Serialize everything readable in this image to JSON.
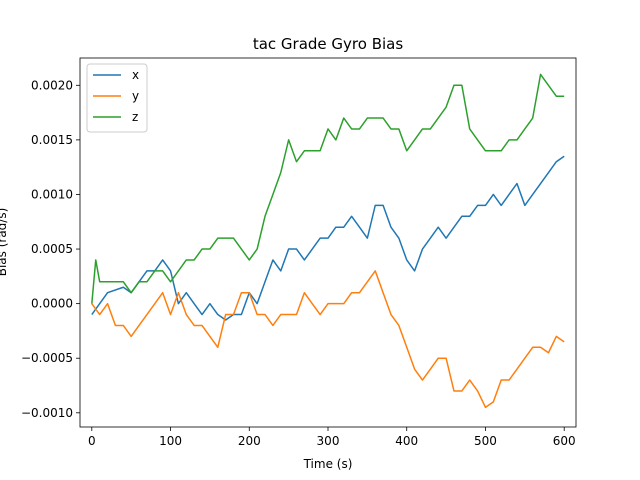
{
  "chart_data": {
    "type": "line",
    "title": "tac Grade Gyro Bias",
    "xlabel": "Time (s)",
    "ylabel": "Bias (rad/s)",
    "xlim": [
      -15,
      615
    ],
    "ylim": [
      -0.00113,
      0.00225
    ],
    "xticks": [
      0,
      100,
      200,
      300,
      400,
      500,
      600
    ],
    "yticks": [
      -0.001,
      -0.0005,
      0.0,
      0.0005,
      0.001,
      0.0015,
      0.002
    ],
    "ytick_labels": [
      "−0.0010",
      "−0.0005",
      "0.0000",
      "0.0005",
      "0.0010",
      "0.0015",
      "0.0020"
    ],
    "grid": false,
    "legend_position": "top-left",
    "colors": {
      "x": "#1f77b4",
      "y": "#ff7f0e",
      "z": "#2ca02c"
    },
    "series": [
      {
        "name": "x",
        "x": [
          0,
          20,
          40,
          50,
          60,
          70,
          80,
          90,
          100,
          110,
          120,
          130,
          140,
          150,
          160,
          170,
          180,
          190,
          200,
          210,
          220,
          230,
          240,
          250,
          260,
          270,
          280,
          290,
          300,
          310,
          320,
          330,
          340,
          350,
          360,
          370,
          380,
          390,
          400,
          410,
          420,
          430,
          440,
          450,
          460,
          470,
          480,
          490,
          500,
          510,
          520,
          530,
          540,
          550,
          560,
          570,
          580,
          590,
          600
        ],
        "y": [
          -0.0001,
          0.0001,
          0.00015,
          0.0001,
          0.0002,
          0.0003,
          0.0003,
          0.0004,
          0.0003,
          0.0,
          0.0001,
          0.0,
          -0.0001,
          0.0,
          -0.0001,
          -0.00015,
          -0.0001,
          -0.0001,
          0.0001,
          0.0,
          0.0002,
          0.0004,
          0.0003,
          0.0005,
          0.0005,
          0.0004,
          0.0005,
          0.0006,
          0.0006,
          0.0007,
          0.0007,
          0.0008,
          0.0007,
          0.0006,
          0.0009,
          0.0009,
          0.0007,
          0.0006,
          0.0004,
          0.0003,
          0.0005,
          0.0006,
          0.0007,
          0.0006,
          0.0007,
          0.0008,
          0.0008,
          0.0009,
          0.0009,
          0.001,
          0.0009,
          0.001,
          0.0011,
          0.0009,
          0.001,
          0.0011,
          0.0012,
          0.0013,
          0.00135
        ]
      },
      {
        "name": "y",
        "x": [
          0,
          10,
          20,
          30,
          40,
          50,
          60,
          70,
          80,
          90,
          100,
          110,
          120,
          130,
          140,
          150,
          160,
          170,
          180,
          190,
          200,
          210,
          220,
          230,
          240,
          250,
          260,
          270,
          280,
          290,
          300,
          310,
          320,
          330,
          340,
          350,
          360,
          370,
          380,
          390,
          400,
          410,
          420,
          430,
          440,
          450,
          460,
          470,
          480,
          490,
          500,
          510,
          520,
          530,
          540,
          550,
          560,
          570,
          580,
          590,
          600
        ],
        "y": [
          0.0,
          -0.0001,
          0.0,
          -0.0002,
          -0.0002,
          -0.0003,
          -0.0002,
          -0.0001,
          0.0,
          0.0001,
          -0.0001,
          0.0001,
          -0.0001,
          -0.0002,
          -0.0002,
          -0.0003,
          -0.0004,
          -0.0001,
          -0.0001,
          0.0001,
          0.0001,
          -0.0001,
          -0.0001,
          -0.0002,
          -0.0001,
          -0.0001,
          -0.0001,
          0.0001,
          0.0,
          -0.0001,
          0.0,
          0.0,
          0.0,
          0.0001,
          0.0001,
          0.0002,
          0.0003,
          0.0001,
          -0.0001,
          -0.0002,
          -0.0004,
          -0.0006,
          -0.0007,
          -0.0006,
          -0.0005,
          -0.0005,
          -0.0008,
          -0.0008,
          -0.0007,
          -0.0008,
          -0.00095,
          -0.0009,
          -0.0007,
          -0.0007,
          -0.0006,
          -0.0005,
          -0.0004,
          -0.0004,
          -0.00045,
          -0.0003,
          -0.00035
        ]
      },
      {
        "name": "z",
        "x": [
          0,
          5,
          10,
          20,
          30,
          40,
          50,
          60,
          70,
          80,
          90,
          100,
          110,
          120,
          130,
          140,
          150,
          160,
          170,
          180,
          190,
          200,
          210,
          220,
          230,
          240,
          250,
          260,
          270,
          280,
          290,
          300,
          310,
          320,
          330,
          340,
          350,
          360,
          370,
          380,
          390,
          400,
          410,
          420,
          430,
          440,
          450,
          460,
          470,
          480,
          490,
          500,
          510,
          520,
          530,
          540,
          550,
          560,
          570,
          580,
          590,
          600
        ],
        "y": [
          0.0,
          0.0004,
          0.0002,
          0.0002,
          0.0002,
          0.0002,
          0.0001,
          0.0002,
          0.0002,
          0.0003,
          0.0003,
          0.0002,
          0.0003,
          0.0004,
          0.0004,
          0.0005,
          0.0005,
          0.0006,
          0.0006,
          0.0006,
          0.0005,
          0.0004,
          0.0005,
          0.0008,
          0.001,
          0.0012,
          0.0015,
          0.0013,
          0.0014,
          0.0014,
          0.0014,
          0.0016,
          0.0015,
          0.0017,
          0.0016,
          0.0016,
          0.0017,
          0.0017,
          0.0017,
          0.0016,
          0.0016,
          0.0014,
          0.0015,
          0.0016,
          0.0016,
          0.0017,
          0.0018,
          0.002,
          0.002,
          0.0016,
          0.0015,
          0.0014,
          0.0014,
          0.0014,
          0.0015,
          0.0015,
          0.0016,
          0.0017,
          0.0021,
          0.002,
          0.0019,
          0.0019
        ]
      }
    ]
  }
}
